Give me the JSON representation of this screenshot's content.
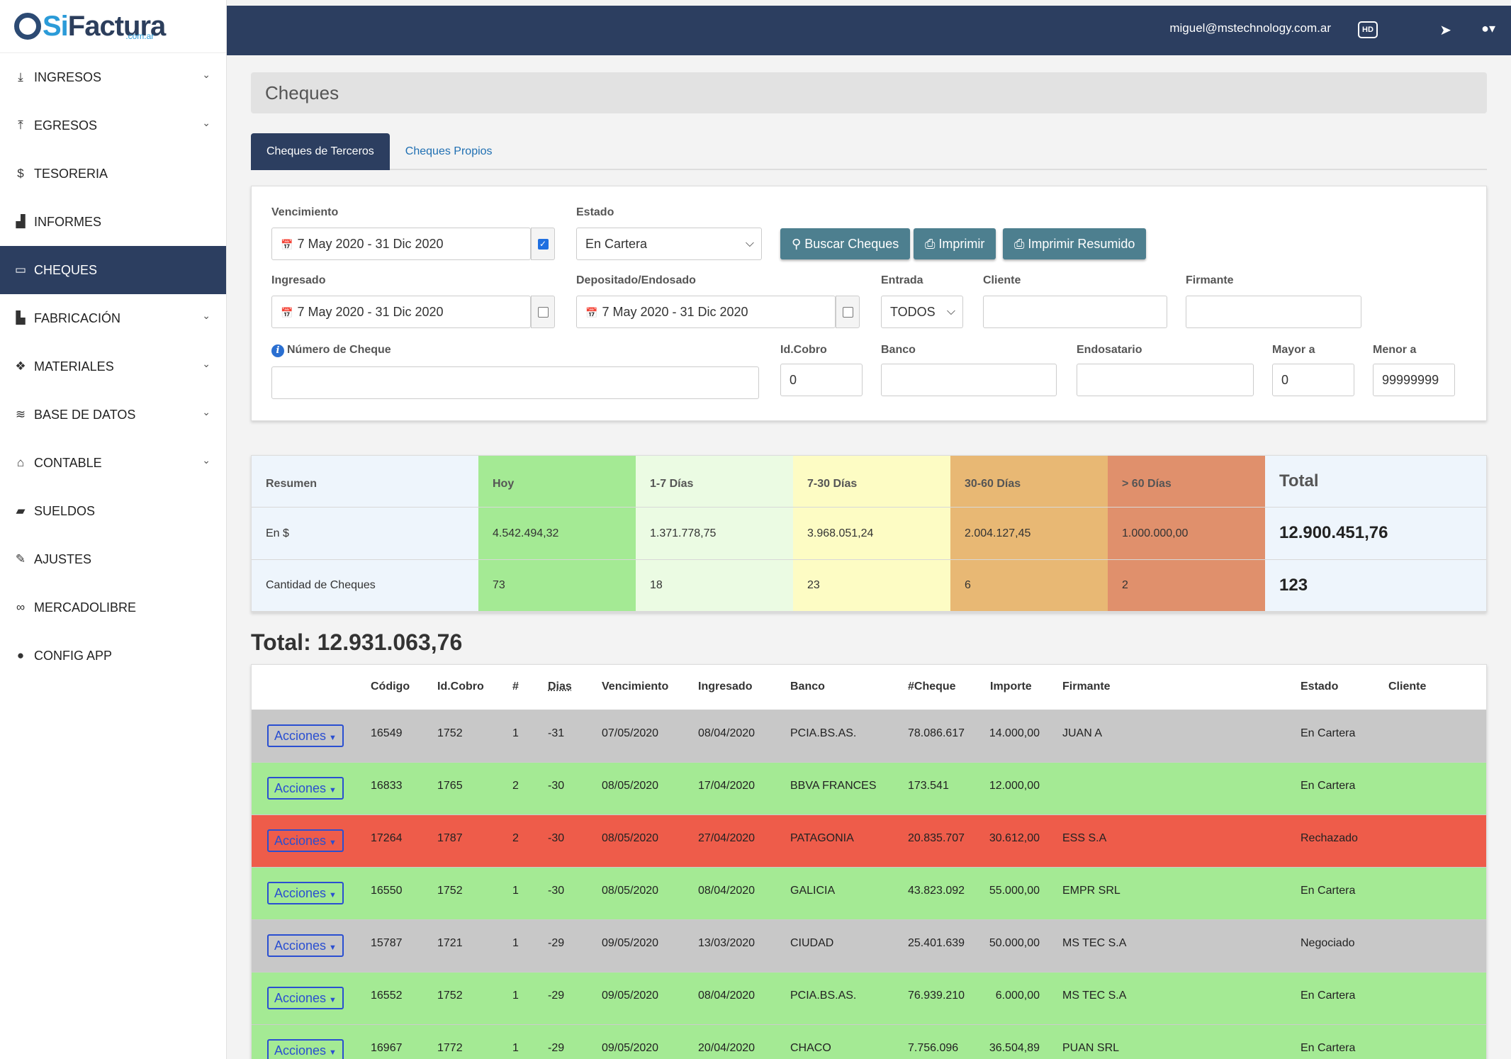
{
  "brand": {
    "name_si": "Si",
    "name_fac": "Factura",
    "sub": ".com.ar"
  },
  "sidebar": {
    "items": [
      {
        "label": "INGRESOS",
        "icon": "download-icon",
        "chevron": true
      },
      {
        "label": "EGRESOS",
        "icon": "upload-icon",
        "chevron": true
      },
      {
        "label": "TESORERIA",
        "icon": "dollar-icon",
        "chevron": false
      },
      {
        "label": "INFORMES",
        "icon": "chart-icon",
        "chevron": false
      },
      {
        "label": "CHEQUES",
        "icon": "card-icon",
        "chevron": false,
        "active": true
      },
      {
        "label": "FABRICACIÓN",
        "icon": "industry-icon",
        "chevron": true
      },
      {
        "label": "MATERIALES",
        "icon": "cubes-icon",
        "chevron": true
      },
      {
        "label": "BASE DE DATOS",
        "icon": "database-icon",
        "chevron": true
      },
      {
        "label": "CONTABLE",
        "icon": "bank-icon",
        "chevron": true
      },
      {
        "label": "SUELDOS",
        "icon": "book-icon",
        "chevron": false
      },
      {
        "label": "AJUSTES",
        "icon": "wrench-icon",
        "chevron": false
      },
      {
        "label": "MERCADOLIBRE",
        "icon": "handshake-icon",
        "chevron": false
      },
      {
        "label": "CONFIG APP",
        "icon": "gamepad-icon",
        "chevron": false
      }
    ]
  },
  "topbar": {
    "email": "miguel@mstechnology.com.ar",
    "hd": "HD"
  },
  "page": {
    "title": "Cheques"
  },
  "tabs": [
    {
      "label": "Cheques de Terceros",
      "active": true
    },
    {
      "label": "Cheques Propios",
      "active": false
    }
  ],
  "filters": {
    "vencimiento": {
      "label": "Vencimiento",
      "value": "7 May 2020 - 31 Dic 2020",
      "checked": true
    },
    "estado": {
      "label": "Estado",
      "value": "En Cartera"
    },
    "ingresado": {
      "label": "Ingresado",
      "value": "7 May 2020 - 31 Dic 2020",
      "checked": false
    },
    "depositado": {
      "label": "Depositado/Endosado",
      "value": "7 May 2020 - 31 Dic 2020",
      "checked": false
    },
    "entrada": {
      "label": "Entrada",
      "value": "TODOS"
    },
    "cliente": {
      "label": "Cliente",
      "value": ""
    },
    "firmante": {
      "label": "Firmante",
      "value": ""
    },
    "numero": {
      "label": "Número de Cheque",
      "value": ""
    },
    "idcobro": {
      "label": "Id.Cobro",
      "value": "0"
    },
    "banco": {
      "label": "Banco",
      "value": ""
    },
    "endosatario": {
      "label": "Endosatario",
      "value": ""
    },
    "mayor": {
      "label": "Mayor a",
      "value": "0"
    },
    "menor": {
      "label": "Menor a",
      "value": "99999999"
    },
    "buttons": {
      "buscar": "Buscar Cheques",
      "imprimir": "Imprimir",
      "resumido": "Imprimir Resumido"
    }
  },
  "summary": {
    "columns": [
      {
        "header": "Resumen",
        "pesos": "En $",
        "cantidad": "Cantidad de Cheques",
        "color": "#eef5fc"
      },
      {
        "header": "Hoy",
        "pesos": "4.542.494,32",
        "cantidad": "73",
        "color": "#a4ea94"
      },
      {
        "header": "1-7 Días",
        "pesos": "1.371.778,75",
        "cantidad": "18",
        "color": "#ebfbe3"
      },
      {
        "header": "7-30 Días",
        "pesos": "3.968.051,24",
        "cantidad": "23",
        "color": "#fdfcc4"
      },
      {
        "header": "30-60 Días",
        "pesos": "2.004.127,45",
        "cantidad": "6",
        "color": "#e8b874"
      },
      {
        "header": "> 60 Días",
        "pesos": "1.000.000,00",
        "cantidad": "2",
        "color": "#e0906c"
      },
      {
        "header": "Total",
        "pesos": "12.900.451,76",
        "cantidad": "123",
        "color": "#eef5fc"
      }
    ]
  },
  "grand_total": "Total: 12.931.063,76",
  "table": {
    "headers": [
      "Código",
      "Id.Cobro",
      "#",
      "Dias",
      "Vencimiento",
      "Ingresado",
      "Banco",
      "#Cheque",
      "Importe",
      "Firmante",
      "Estado",
      "Cliente"
    ],
    "action_label": "Acciones",
    "rows": [
      {
        "codigo": "16549",
        "idcobro": "1752",
        "num": "1",
        "dias": "-31",
        "vto": "07/05/2020",
        "ing": "08/04/2020",
        "banco": "PCIA.BS.AS.",
        "cheque": "78.086.617",
        "importe": "14.000,00",
        "firmante": "JUAN A",
        "estado": "En Cartera",
        "cliente": "",
        "color": "gray"
      },
      {
        "codigo": "16833",
        "idcobro": "1765",
        "num": "2",
        "dias": "-30",
        "vto": "08/05/2020",
        "ing": "17/04/2020",
        "banco": "BBVA FRANCES",
        "cheque": "173.541",
        "importe": "12.000,00",
        "firmante": "",
        "estado": "En Cartera",
        "cliente": "",
        "color": "green"
      },
      {
        "codigo": "17264",
        "idcobro": "1787",
        "num": "2",
        "dias": "-30",
        "vto": "08/05/2020",
        "ing": "27/04/2020",
        "banco": "PATAGONIA",
        "cheque": "20.835.707",
        "importe": "30.612,00",
        "firmante": "ESS S.A",
        "estado": "Rechazado",
        "cliente": "",
        "color": "red"
      },
      {
        "codigo": "16550",
        "idcobro": "1752",
        "num": "1",
        "dias": "-30",
        "vto": "08/05/2020",
        "ing": "08/04/2020",
        "banco": "GALICIA",
        "cheque": "43.823.092",
        "importe": "55.000,00",
        "firmante": "EMPR SRL",
        "estado": "En Cartera",
        "cliente": "",
        "color": "green"
      },
      {
        "codigo": "15787",
        "idcobro": "1721",
        "num": "1",
        "dias": "-29",
        "vto": "09/05/2020",
        "ing": "13/03/2020",
        "banco": "CIUDAD",
        "cheque": "25.401.639",
        "importe": "50.000,00",
        "firmante": "MS TEC S.A",
        "estado": "Negociado",
        "cliente": "",
        "color": "gray"
      },
      {
        "codigo": "16552",
        "idcobro": "1752",
        "num": "1",
        "dias": "-29",
        "vto": "09/05/2020",
        "ing": "08/04/2020",
        "banco": "PCIA.BS.AS.",
        "cheque": "76.939.210",
        "importe": "6.000,00",
        "firmante": "MS TEC S.A",
        "estado": "En Cartera",
        "cliente": "",
        "color": "green"
      },
      {
        "codigo": "16967",
        "idcobro": "1772",
        "num": "1",
        "dias": "-29",
        "vto": "09/05/2020",
        "ing": "20/04/2020",
        "banco": "CHACO",
        "cheque": "7.756.096",
        "importe": "36.504,89",
        "firmante": "PUAN SRL",
        "estado": "En Cartera",
        "cliente": "",
        "color": "green"
      }
    ]
  }
}
